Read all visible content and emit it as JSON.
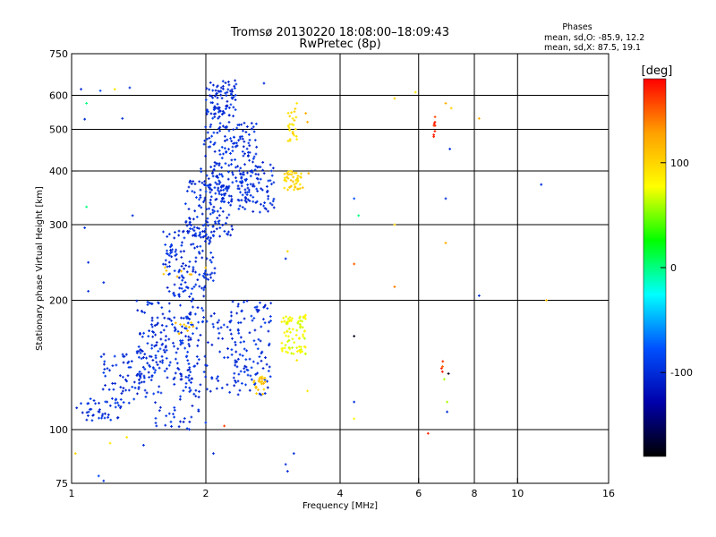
{
  "chart_data": {
    "type": "scatter",
    "title": "Tromsø 20130220 18:08:00–18:09:43",
    "subtitle": "RwPretec (8p)",
    "xlabel": "Frequency [MHz]",
    "ylabel": "Stationary phase Virtual Height [km]",
    "x_scale": "log",
    "y_scale": "log",
    "xlim": [
      1,
      16
    ],
    "ylim": [
      75,
      750
    ],
    "x_ticks": [
      1,
      2,
      4,
      6,
      8,
      10,
      16
    ],
    "y_ticks": [
      75,
      100,
      200,
      300,
      400,
      500,
      600,
      750
    ],
    "x_gridlines": [
      2,
      4,
      6,
      8,
      10
    ],
    "y_gridlines": [
      100,
      200,
      300,
      400,
      500,
      600
    ],
    "stats": {
      "heading": "Phases",
      "line_o": "mean, sd,O: -85.9, 12.2",
      "line_x": "mean, sd,X:  87.5, 19.1"
    },
    "colorbar": {
      "label": "[deg]",
      "range": [
        -180,
        180
      ],
      "ticks": [
        100,
        0,
        -100
      ],
      "colors": [
        "#ff0000",
        "#ffa000",
        "#ffff00",
        "#00ff00",
        "#00ffff",
        "#0050ff",
        "#0000aa",
        "#000000"
      ]
    },
    "point_color_default": "#1e5ad2",
    "clusters": [
      {
        "x": [
          1.02,
          1.3
        ],
        "y": [
          105,
          118
        ],
        "n": 40,
        "phase": -100
      },
      {
        "x": [
          1.15,
          1.55
        ],
        "y": [
          115,
          150
        ],
        "n": 80,
        "phase": -100
      },
      {
        "x": [
          1.4,
          1.85
        ],
        "y": [
          130,
          200
        ],
        "n": 150,
        "phase": -100
      },
      {
        "x": [
          1.6,
          2.1
        ],
        "y": [
          200,
          290
        ],
        "n": 140,
        "phase": -100
      },
      {
        "x": [
          1.8,
          2.3
        ],
        "y": [
          280,
          380
        ],
        "n": 140,
        "phase": -100
      },
      {
        "x": [
          1.95,
          2.6
        ],
        "y": [
          340,
          520
        ],
        "n": 180,
        "phase": -100
      },
      {
        "x": [
          2.0,
          2.35
        ],
        "y": [
          530,
          650
        ],
        "n": 90,
        "phase": -100
      },
      {
        "x": [
          2.35,
          2.85
        ],
        "y": [
          320,
          420
        ],
        "n": 80,
        "phase": -100
      },
      {
        "x": [
          1.8,
          2.8
        ],
        "y": [
          120,
          200
        ],
        "n": 200,
        "phase": -100
      },
      {
        "x": [
          1.5,
          2.0
        ],
        "y": [
          100,
          130
        ],
        "n": 40,
        "phase": -100
      },
      {
        "x": [
          2.95,
          3.35
        ],
        "y": [
          150,
          185
        ],
        "n": 80,
        "phase": 75
      },
      {
        "x": [
          3.0,
          3.3
        ],
        "y": [
          360,
          400
        ],
        "n": 45,
        "phase": 100
      },
      {
        "x": [
          3.05,
          3.2
        ],
        "y": [
          460,
          560
        ],
        "n": 25,
        "phase": 95
      },
      {
        "x": [
          2.55,
          2.75
        ],
        "y": [
          120,
          135
        ],
        "n": 22,
        "phase": 110
      },
      {
        "x": [
          1.7,
          1.9
        ],
        "y": [
          165,
          180
        ],
        "n": 10,
        "phase": 110
      },
      {
        "x": [
          1.6,
          2.0
        ],
        "y": [
          225,
          240
        ],
        "n": 8,
        "phase": 110
      },
      {
        "x": [
          6.48,
          6.55
        ],
        "y": [
          460,
          550
        ],
        "n": 8,
        "phase": 165
      },
      {
        "x": [
          6.5,
          6.8
        ],
        "y": [
          135,
          145
        ],
        "n": 4,
        "phase": 160
      }
    ],
    "isolated_points": [
      {
        "x": 1.05,
        "y": 620,
        "phase": -100
      },
      {
        "x": 1.07,
        "y": 528,
        "phase": -100
      },
      {
        "x": 1.08,
        "y": 575,
        "phase": 0
      },
      {
        "x": 1.16,
        "y": 615,
        "phase": -80
      },
      {
        "x": 1.25,
        "y": 620,
        "phase": 90
      },
      {
        "x": 1.35,
        "y": 625,
        "phase": -100
      },
      {
        "x": 1.3,
        "y": 530,
        "phase": -100
      },
      {
        "x": 1.37,
        "y": 315,
        "phase": -100
      },
      {
        "x": 1.08,
        "y": 330,
        "phase": 0
      },
      {
        "x": 1.07,
        "y": 295,
        "phase": -100
      },
      {
        "x": 1.09,
        "y": 245,
        "phase": -100
      },
      {
        "x": 1.18,
        "y": 220,
        "phase": -100
      },
      {
        "x": 1.09,
        "y": 210,
        "phase": -100
      },
      {
        "x": 1.02,
        "y": 88,
        "phase": 100
      },
      {
        "x": 1.22,
        "y": 93,
        "phase": 90
      },
      {
        "x": 1.33,
        "y": 96,
        "phase": 90
      },
      {
        "x": 1.45,
        "y": 92,
        "phase": -100
      },
      {
        "x": 1.55,
        "y": 102,
        "phase": -100
      },
      {
        "x": 1.15,
        "y": 78,
        "phase": -80
      },
      {
        "x": 1.18,
        "y": 76,
        "phase": -100
      },
      {
        "x": 2.08,
        "y": 88,
        "phase": -100
      },
      {
        "x": 3.02,
        "y": 83,
        "phase": -100
      },
      {
        "x": 3.05,
        "y": 80,
        "phase": -100
      },
      {
        "x": 3.15,
        "y": 88,
        "phase": -100
      },
      {
        "x": 2.2,
        "y": 102,
        "phase": 160
      },
      {
        "x": 2.7,
        "y": 640,
        "phase": -100
      },
      {
        "x": 3.35,
        "y": 545,
        "phase": 120
      },
      {
        "x": 3.38,
        "y": 520,
        "phase": 120
      },
      {
        "x": 3.4,
        "y": 395,
        "phase": 120
      },
      {
        "x": 3.05,
        "y": 260,
        "phase": 100
      },
      {
        "x": 3.02,
        "y": 250,
        "phase": -100
      },
      {
        "x": 3.2,
        "y": 575,
        "phase": 90
      },
      {
        "x": 3.38,
        "y": 123,
        "phase": 90
      },
      {
        "x": 3.2,
        "y": 145,
        "phase": 90
      },
      {
        "x": 4.3,
        "y": 345,
        "phase": -80
      },
      {
        "x": 4.4,
        "y": 315,
        "phase": 0
      },
      {
        "x": 4.3,
        "y": 243,
        "phase": 150
      },
      {
        "x": 4.3,
        "y": 165,
        "phase": -170
      },
      {
        "x": 4.3,
        "y": 116,
        "phase": -100
      },
      {
        "x": 4.3,
        "y": 106,
        "phase": 80
      },
      {
        "x": 5.3,
        "y": 590,
        "phase": 100
      },
      {
        "x": 5.3,
        "y": 300,
        "phase": 100
      },
      {
        "x": 5.3,
        "y": 215,
        "phase": 140
      },
      {
        "x": 5.9,
        "y": 610,
        "phase": 90
      },
      {
        "x": 6.3,
        "y": 98,
        "phase": 170
      },
      {
        "x": 6.9,
        "y": 345,
        "phase": -100
      },
      {
        "x": 6.9,
        "y": 272,
        "phase": 120
      },
      {
        "x": 6.9,
        "y": 575,
        "phase": 120
      },
      {
        "x": 7.05,
        "y": 450,
        "phase": -100
      },
      {
        "x": 7.1,
        "y": 560,
        "phase": 100
      },
      {
        "x": 7.0,
        "y": 135,
        "phase": -170
      },
      {
        "x": 6.85,
        "y": 131,
        "phase": 60
      },
      {
        "x": 6.95,
        "y": 116,
        "phase": 60
      },
      {
        "x": 6.95,
        "y": 110,
        "phase": -100
      },
      {
        "x": 8.2,
        "y": 530,
        "phase": 120
      },
      {
        "x": 8.2,
        "y": 205,
        "phase": -100
      },
      {
        "x": 11.3,
        "y": 372,
        "phase": -100
      },
      {
        "x": 11.6,
        "y": 200,
        "phase": 110
      }
    ]
  }
}
